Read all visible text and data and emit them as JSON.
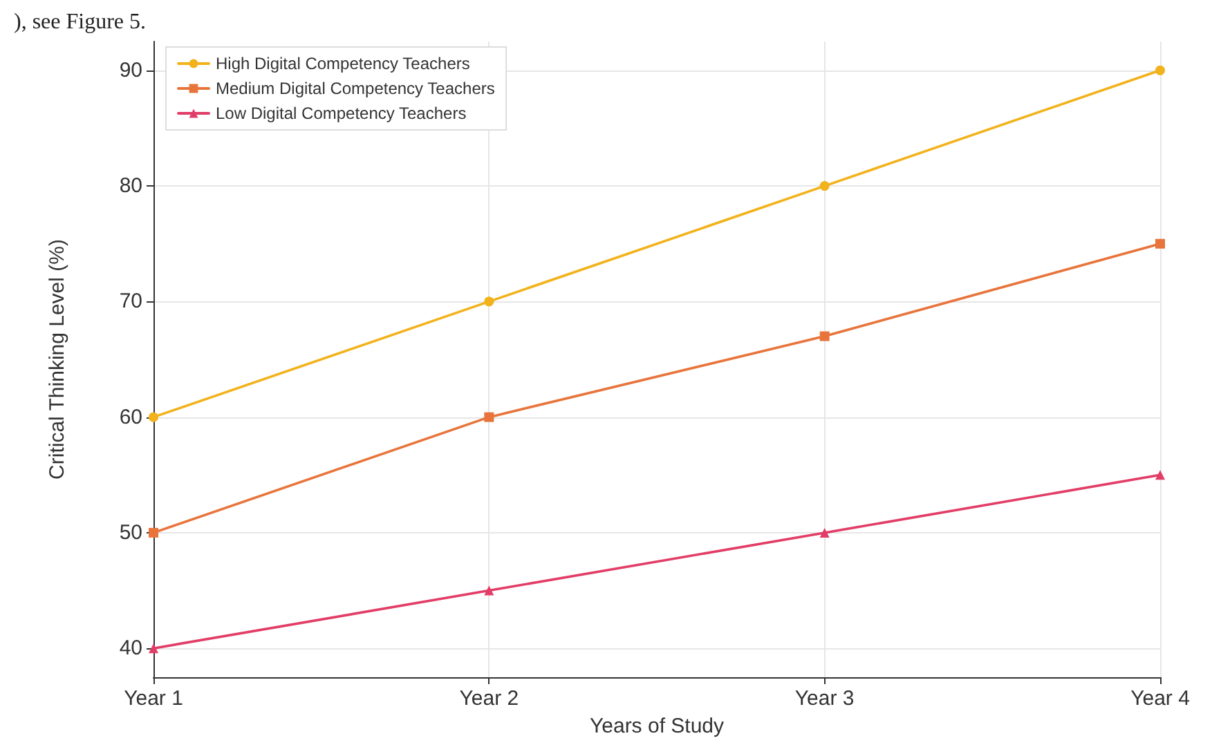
{
  "chart_data": {
    "type": "line",
    "xlabel": "Years of Study",
    "ylabel": "Critical Thinking Level (%)",
    "annotations": [
      "), see Figure 5."
    ],
    "categories": [
      "Year 1",
      "Year 2",
      "Year 3",
      "Year 4"
    ],
    "series": [
      {
        "name": "High Digital Competency Teachers",
        "color": "#f2b21c",
        "marker": "circle",
        "values": [
          60,
          70,
          80,
          90
        ]
      },
      {
        "name": "Medium Digital Competency Teachers",
        "color": "#e8743b",
        "marker": "square",
        "values": [
          50,
          60,
          67,
          75
        ]
      },
      {
        "name": "Low Digital Competency Teachers",
        "color": "#e23d67",
        "marker": "triangle",
        "values": [
          40,
          45,
          50,
          55
        ]
      }
    ],
    "ylim": [
      37.5,
      92.5
    ],
    "yticks": [
      40,
      50,
      60,
      70,
      80,
      90
    ],
    "grid": true,
    "legend": "top left",
    "line_style": "solid"
  }
}
